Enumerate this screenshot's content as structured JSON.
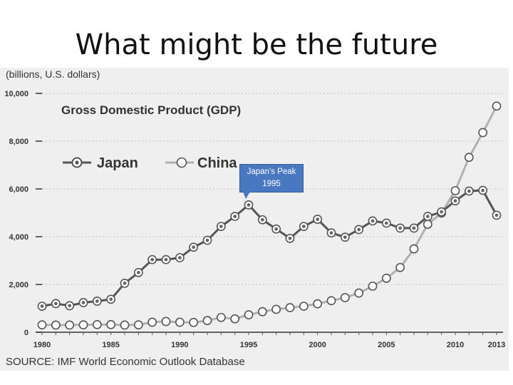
{
  "slide": {
    "title": "What might be the future",
    "callout_line1": "Japan’s Peak",
    "callout_line2": "1995"
  },
  "chart_data": {
    "type": "line",
    "title": "Gross Domestic Product (GDP)",
    "ylabel": "(billions, U.S. dollars)",
    "source": "SOURCE: IMF World Economic Outlook Database",
    "xlim": [
      1980,
      2013
    ],
    "ylim": [
      0,
      10000
    ],
    "x_ticks": [
      1980,
      1985,
      1990,
      1995,
      2000,
      2005,
      2010,
      2013
    ],
    "y_ticks": [
      0,
      2000,
      4000,
      6000,
      8000,
      10000
    ],
    "y_tick_labels": [
      "0",
      "2,000",
      "4,000",
      "6,000",
      "8,000",
      "10,000"
    ],
    "legend_position": "top-left",
    "grid": "horizontal-dotted",
    "x": [
      1980,
      1981,
      1982,
      1983,
      1984,
      1985,
      1986,
      1987,
      1988,
      1989,
      1990,
      1991,
      1992,
      1993,
      1994,
      1995,
      1996,
      1997,
      1998,
      1999,
      2000,
      2001,
      2002,
      2003,
      2004,
      2005,
      2006,
      2007,
      2008,
      2009,
      2010,
      2011,
      2012,
      2013
    ],
    "series": [
      {
        "name": "Japan",
        "color": "#555555",
        "values": [
          1090,
          1200,
          1110,
          1240,
          1300,
          1380,
          2050,
          2500,
          3040,
          3040,
          3120,
          3560,
          3850,
          4430,
          4850,
          5330,
          4710,
          4320,
          3930,
          4430,
          4730,
          4160,
          3980,
          4300,
          4660,
          4570,
          4360,
          4360,
          4850,
          5040,
          5500,
          5910,
          5940,
          4900
        ]
      },
      {
        "name": "China",
        "color": "#b0b0b0",
        "values": [
          310,
          300,
          300,
          310,
          320,
          320,
          300,
          310,
          420,
          450,
          420,
          410,
          490,
          620,
          560,
          730,
          860,
          960,
          1030,
          1090,
          1190,
          1320,
          1450,
          1640,
          1930,
          2260,
          2710,
          3490,
          4520,
          4990,
          5930,
          7320,
          8360,
          9470
        ]
      }
    ]
  }
}
